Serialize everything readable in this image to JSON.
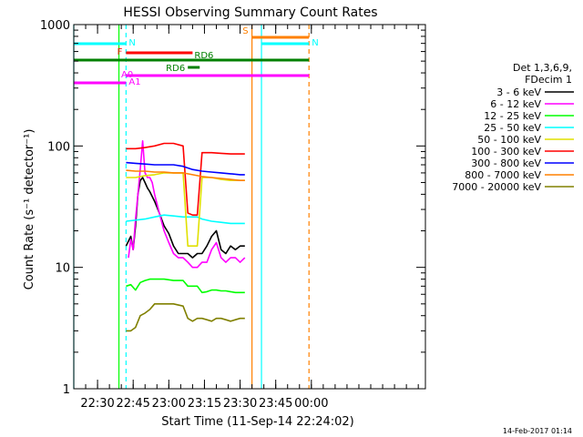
{
  "chart_data": {
    "type": "line",
    "title": "HESSI Observing Summary Count Rates",
    "xlabel": "Start Time (11-Sep-14 22:24:02)",
    "ylabel": "Count Rate (s⁻¹ detector⁻¹)",
    "ylog": true,
    "ylim": [
      1,
      1000
    ],
    "xlim_min": [
      -4,
      144
    ],
    "x_units": "minutes after 22:24:02",
    "x_ticks": [
      {
        "m": 6,
        "label": "22:30"
      },
      {
        "m": 21,
        "label": "22:45"
      },
      {
        "m": 36,
        "label": "23:00"
      },
      {
        "m": 51,
        "label": "23:15"
      },
      {
        "m": 66,
        "label": "23:30"
      },
      {
        "m": 81,
        "label": "23:45"
      },
      {
        "m": 96,
        "label": "00:00"
      }
    ],
    "y_ticks": [
      {
        "v": 1,
        "label": "1"
      },
      {
        "v": 10,
        "label": "10"
      },
      {
        "v": 100,
        "label": "100"
      },
      {
        "v": 1000,
        "label": "1000"
      }
    ],
    "legend_header": [
      "Det 1,3,6,9,",
      "FDecim 1"
    ],
    "legend_placement": "right",
    "series": [
      {
        "name": "3 - 6 keV",
        "color": "#000000",
        "x": [
          18,
          20,
          21,
          22,
          23,
          24,
          25,
          26,
          27,
          28,
          30,
          32,
          34,
          36,
          38,
          40,
          42,
          44,
          46,
          48,
          50,
          52,
          54,
          56,
          58,
          60,
          62,
          64,
          66,
          68
        ],
        "y": [
          15,
          18,
          14,
          22,
          40,
          52,
          55,
          50,
          45,
          42,
          35,
          28,
          22,
          19,
          15,
          13,
          13,
          13,
          12,
          13,
          13,
          15,
          18,
          20,
          14,
          13,
          15,
          14,
          15,
          15
        ]
      },
      {
        "name": "6 - 12 keV",
        "color": "#ff00ff",
        "x": [
          19,
          20,
          21,
          22,
          23,
          24,
          25,
          26,
          27,
          28,
          29,
          30,
          32,
          34,
          36,
          38,
          40,
          42,
          44,
          46,
          48,
          50,
          52,
          54,
          56,
          58,
          60,
          62,
          64,
          66,
          68
        ],
        "y": [
          12,
          17,
          14,
          25,
          40,
          65,
          110,
          60,
          55,
          55,
          50,
          40,
          28,
          20,
          16,
          13,
          12,
          12,
          11,
          10,
          10,
          11,
          11,
          14,
          16,
          12,
          11,
          12,
          12,
          11,
          12
        ]
      },
      {
        "name": "12 - 25 keV",
        "color": "#00ff00",
        "x": [
          18,
          20,
          22,
          24,
          26,
          28,
          30,
          34,
          38,
          42,
          44,
          46,
          48,
          50,
          52,
          54,
          56,
          58,
          60,
          62,
          64,
          66,
          68
        ],
        "y": [
          7.0,
          7.2,
          6.5,
          7.5,
          7.8,
          8.0,
          8.0,
          8.0,
          7.8,
          7.8,
          7.0,
          7.0,
          7.0,
          6.2,
          6.3,
          6.5,
          6.5,
          6.4,
          6.4,
          6.3,
          6.2,
          6.2,
          6.2
        ]
      },
      {
        "name": "25 - 50 keV",
        "color": "#00ffff",
        "x": [
          18,
          22,
          26,
          30,
          34,
          38,
          42,
          44,
          46,
          48,
          50,
          54,
          58,
          62,
          66,
          68
        ],
        "y": [
          24,
          24.5,
          25,
          26,
          27,
          26.5,
          26,
          26,
          26,
          26,
          25,
          24,
          23.5,
          23,
          23,
          23
        ]
      },
      {
        "name": "50 - 100 keV",
        "color": "#e0e000",
        "x": [
          18,
          22,
          26,
          30,
          34,
          38,
          42,
          44,
          46,
          48,
          50,
          54,
          58,
          62,
          66,
          68
        ],
        "y": [
          55,
          55,
          57,
          58,
          60,
          60,
          60,
          15,
          15,
          15,
          55,
          55,
          53,
          52,
          52,
          52
        ]
      },
      {
        "name": "100 - 300 keV",
        "color": "#ff0000",
        "x": [
          18,
          22,
          26,
          30,
          34,
          38,
          42,
          44,
          46,
          48,
          50,
          54,
          58,
          62,
          66,
          68
        ],
        "y": [
          95,
          95,
          97,
          100,
          105,
          105,
          100,
          28,
          27,
          27,
          88,
          88,
          87,
          86,
          86,
          86
        ]
      },
      {
        "name": "300 - 800 keV",
        "color": "#0000ff",
        "x": [
          18,
          22,
          26,
          30,
          34,
          38,
          42,
          46,
          50,
          54,
          58,
          62,
          66,
          68
        ],
        "y": [
          73,
          72,
          71,
          70,
          70,
          70,
          68,
          64,
          62,
          61,
          60,
          59,
          58,
          58
        ]
      },
      {
        "name": "800 - 7000 keV",
        "color": "#ff8000",
        "x": [
          18,
          22,
          26,
          30,
          34,
          38,
          42,
          46,
          50,
          54,
          58,
          62,
          66,
          68
        ],
        "y": [
          63,
          62,
          62,
          61,
          61,
          60,
          60,
          58,
          56,
          55,
          54,
          53,
          52,
          52
        ]
      },
      {
        "name": "7000 - 20000 keV",
        "color": "#808000",
        "x": [
          18,
          20,
          22,
          24,
          26,
          28,
          30,
          34,
          38,
          42,
          44,
          46,
          48,
          50,
          52,
          54,
          56,
          58,
          60,
          62,
          64,
          66,
          68
        ],
        "y": [
          3.0,
          3.0,
          3.2,
          4.0,
          4.2,
          4.5,
          5.0,
          5.0,
          5.0,
          4.8,
          3.8,
          3.6,
          3.8,
          3.8,
          3.7,
          3.6,
          3.8,
          3.8,
          3.7,
          3.6,
          3.7,
          3.8,
          3.8
        ]
      }
    ],
    "vertical_lines": [
      {
        "m": -4,
        "color": "#00ffff",
        "style": "solid"
      },
      {
        "m": 15,
        "color": "#00ff00",
        "style": "solid"
      },
      {
        "m": 18,
        "color": "#00ffff",
        "style": "dashed"
      },
      {
        "m": 71,
        "color": "#ff8000",
        "style": "solid"
      },
      {
        "m": 75,
        "color": "#00ffff",
        "style": "solid"
      },
      {
        "m": 95,
        "color": "#ff8000",
        "style": "dashed"
      }
    ],
    "flag_bars": [
      {
        "label": "N",
        "color": "#00ffff",
        "x_start": -4,
        "x_end": 18
      },
      {
        "label": "N",
        "color": "#00ffff",
        "x_start": 75,
        "x_end": 95
      },
      {
        "label": "S",
        "color": "#ff8000",
        "x_start": 71,
        "x_end": 95
      },
      {
        "label": "F",
        "color": "#ff0000",
        "x_start": 18,
        "x_end": 46
      },
      {
        "label": "RD6",
        "color": "#008000",
        "x_start": -4,
        "x_end": 95
      },
      {
        "label": "RD6",
        "color": "#008000",
        "x_start": 44,
        "x_end": 49
      },
      {
        "label": "A0",
        "color": "#ff00ff",
        "x_start": -4,
        "x_end": 18
      },
      {
        "label": "A1",
        "color": "#ff00ff",
        "x_start": 18,
        "x_end": 95
      }
    ]
  },
  "footer": {
    "timestamp": "14-Feb-2017 01:14"
  }
}
